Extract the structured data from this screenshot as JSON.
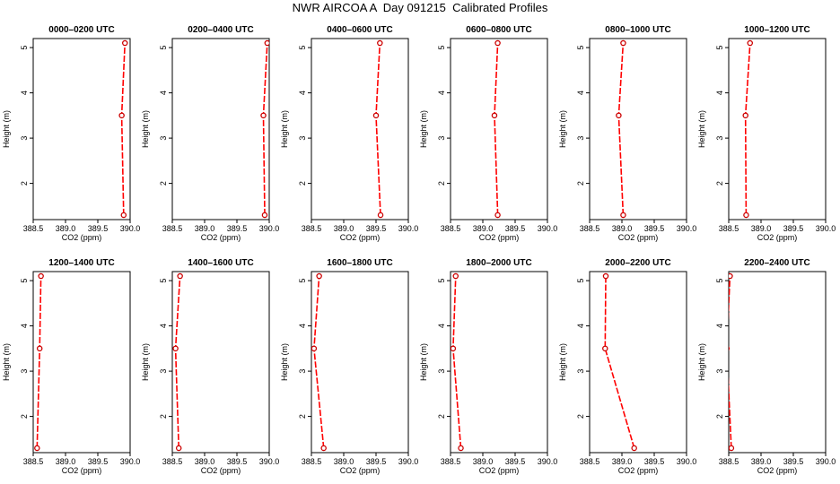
{
  "title": "NWR AIRCOA A  Day 091215  Calibrated Profiles",
  "colors": {
    "line": "#ff0000",
    "marker": "#cc0000",
    "axis": "#000000"
  },
  "chart_data": [
    {
      "type": "line",
      "title": "0000–0200 UTC",
      "xlabel": "CO2 (ppm)",
      "ylabel": "Height (m)",
      "xlim": [
        388.5,
        390.0
      ],
      "ylim": [
        1.2,
        5.2
      ],
      "xticks": [
        "388.5",
        "389.0",
        "389.5",
        "390.0"
      ],
      "yticks": [
        "2",
        "3",
        "4",
        "5"
      ],
      "x": [
        389.9,
        389.87,
        389.92
      ],
      "y": [
        1.3,
        3.5,
        5.1
      ]
    },
    {
      "type": "line",
      "title": "0200–0400 UTC",
      "xlabel": "CO2 (ppm)",
      "ylabel": "Height (m)",
      "xlim": [
        388.5,
        390.0
      ],
      "ylim": [
        1.2,
        5.2
      ],
      "xticks": [
        "388.5",
        "389.0",
        "389.5",
        "390.0"
      ],
      "yticks": [
        "2",
        "3",
        "4",
        "5"
      ],
      "x": [
        389.93,
        389.91,
        389.97
      ],
      "y": [
        1.3,
        3.5,
        5.1
      ]
    },
    {
      "type": "line",
      "title": "0400–0600 UTC",
      "xlabel": "CO2 (ppm)",
      "ylabel": "Height (m)",
      "xlim": [
        388.5,
        390.0
      ],
      "ylim": [
        1.2,
        5.2
      ],
      "xticks": [
        "388.5",
        "389.0",
        "389.5",
        "390.0"
      ],
      "yticks": [
        "2",
        "3",
        "4",
        "5"
      ],
      "x": [
        389.57,
        389.5,
        389.56
      ],
      "y": [
        1.3,
        3.5,
        5.1
      ]
    },
    {
      "type": "line",
      "title": "0600–0800 UTC",
      "xlabel": "CO2 (ppm)",
      "ylabel": "Height (m)",
      "xlim": [
        388.5,
        390.0
      ],
      "ylim": [
        1.2,
        5.2
      ],
      "xticks": [
        "388.5",
        "389.0",
        "389.5",
        "390.0"
      ],
      "yticks": [
        "2",
        "3",
        "4",
        "5"
      ],
      "x": [
        389.23,
        389.18,
        389.23
      ],
      "y": [
        1.3,
        3.5,
        5.1
      ]
    },
    {
      "type": "line",
      "title": "0800–1000 UTC",
      "xlabel": "CO2 (ppm)",
      "ylabel": "Height (m)",
      "xlim": [
        388.5,
        390.0
      ],
      "ylim": [
        1.2,
        5.2
      ],
      "xticks": [
        "388.5",
        "389.0",
        "389.5",
        "390.0"
      ],
      "yticks": [
        "2",
        "3",
        "4",
        "5"
      ],
      "x": [
        389.02,
        388.95,
        389.02
      ],
      "y": [
        1.3,
        3.5,
        5.1
      ]
    },
    {
      "type": "line",
      "title": "1000–1200 UTC",
      "xlabel": "CO2 (ppm)",
      "ylabel": "Height (m)",
      "xlim": [
        388.5,
        390.0
      ],
      "ylim": [
        1.2,
        5.2
      ],
      "xticks": [
        "388.5",
        "389.0",
        "389.5",
        "390.0"
      ],
      "yticks": [
        "2",
        "3",
        "4",
        "5"
      ],
      "x": [
        388.77,
        388.76,
        388.83
      ],
      "y": [
        1.3,
        3.5,
        5.1
      ]
    },
    {
      "type": "line",
      "title": "1200–1400 UTC",
      "xlabel": "CO2 (ppm)",
      "ylabel": "Height (m)",
      "xlim": [
        388.5,
        390.0
      ],
      "ylim": [
        1.2,
        5.2
      ],
      "xticks": [
        "388.5",
        "389.0",
        "389.5",
        "390.0"
      ],
      "yticks": [
        "2",
        "3",
        "4",
        "5"
      ],
      "x": [
        388.56,
        388.6,
        388.62
      ],
      "y": [
        1.3,
        3.5,
        5.1
      ]
    },
    {
      "type": "line",
      "title": "1400–1600 UTC",
      "xlabel": "CO2 (ppm)",
      "ylabel": "Height (m)",
      "xlim": [
        388.5,
        390.0
      ],
      "ylim": [
        1.2,
        5.2
      ],
      "xticks": [
        "388.5",
        "389.0",
        "389.5",
        "390.0"
      ],
      "yticks": [
        "2",
        "3",
        "4",
        "5"
      ],
      "x": [
        388.6,
        388.55,
        388.62
      ],
      "y": [
        1.3,
        3.5,
        5.1
      ]
    },
    {
      "type": "line",
      "title": "1600–1800 UTC",
      "xlabel": "CO2 (ppm)",
      "ylabel": "Height (m)",
      "xlim": [
        388.5,
        390.0
      ],
      "ylim": [
        1.2,
        5.2
      ],
      "xticks": [
        "388.5",
        "389.0",
        "389.5",
        "390.0"
      ],
      "yticks": [
        "2",
        "3",
        "4",
        "5"
      ],
      "x": [
        388.69,
        388.54,
        388.62
      ],
      "y": [
        1.3,
        3.5,
        5.1
      ]
    },
    {
      "type": "line",
      "title": "1800–2000 UTC",
      "xlabel": "CO2 (ppm)",
      "ylabel": "Height (m)",
      "xlim": [
        388.5,
        390.0
      ],
      "ylim": [
        1.2,
        5.2
      ],
      "xticks": [
        "388.5",
        "389.0",
        "389.5",
        "390.0"
      ],
      "yticks": [
        "2",
        "3",
        "4",
        "5"
      ],
      "x": [
        388.66,
        388.54,
        388.58
      ],
      "y": [
        1.3,
        3.5,
        5.1
      ]
    },
    {
      "type": "line",
      "title": "2000–2200 UTC",
      "xlabel": "CO2 (ppm)",
      "ylabel": "Height (m)",
      "xlim": [
        388.5,
        390.0
      ],
      "ylim": [
        1.2,
        5.2
      ],
      "xticks": [
        "388.5",
        "389.0",
        "389.5",
        "390.0"
      ],
      "yticks": [
        "2",
        "3",
        "4",
        "5"
      ],
      "x": [
        389.19,
        388.74,
        388.75
      ],
      "y": [
        1.3,
        3.5,
        5.1
      ]
    },
    {
      "type": "line",
      "title": "2200–2400 UTC",
      "xlabel": "CO2 (ppm)",
      "ylabel": "Height (m)",
      "xlim": [
        388.5,
        390.0
      ],
      "ylim": [
        1.2,
        5.2
      ],
      "xticks": [
        "388.5",
        "389.0",
        "389.5",
        "390.0"
      ],
      "yticks": [
        "2",
        "3",
        "4",
        "5"
      ],
      "x": [
        388.54,
        388.47,
        388.52
      ],
      "y": [
        1.3,
        3.5,
        5.1
      ]
    }
  ]
}
